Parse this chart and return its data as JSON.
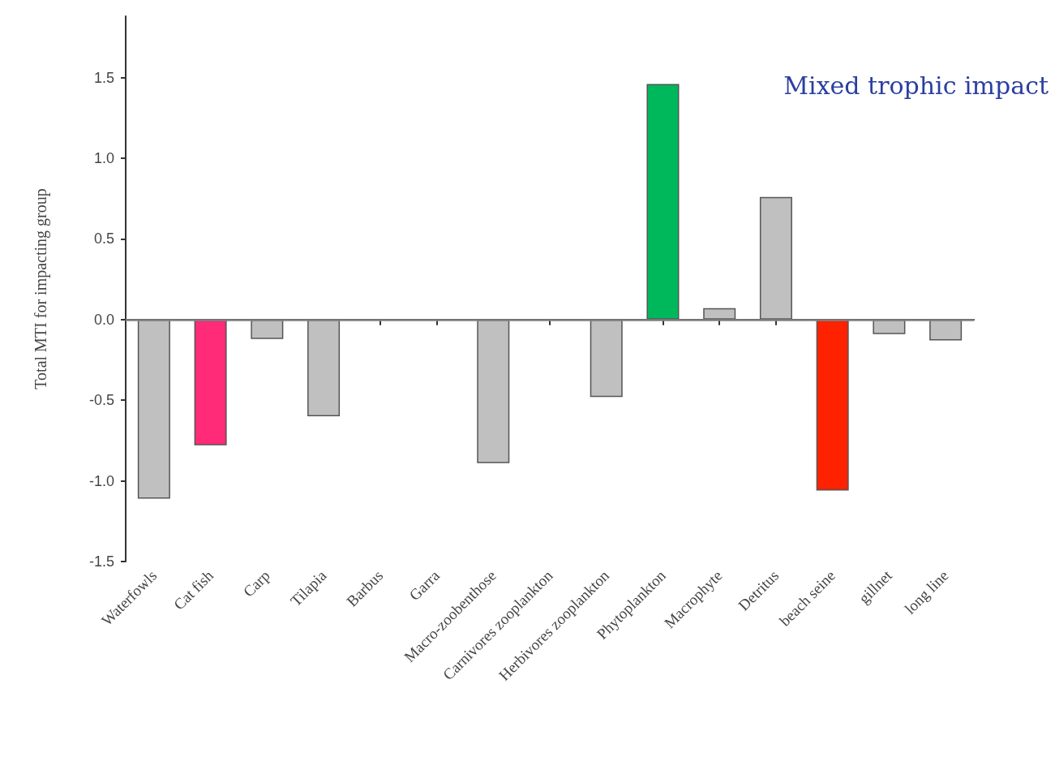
{
  "chart_data": {
    "type": "bar",
    "annotations": [
      "Mixed trophic impact"
    ],
    "ylabel": "Total MTI for impacting group",
    "categories": [
      "Waterfowls",
      "Cat fish",
      "Carp",
      "Tilapia",
      "Barbus",
      "Garra",
      "Macro-zoobenthose",
      "Carnivores zooplankton",
      "Herbivores zooplankton",
      "Phytoplankton",
      "Macrophyte",
      "Detritus",
      "beach seine",
      "gillnet",
      "long line"
    ],
    "values": [
      -1.11,
      -0.78,
      -0.12,
      -0.6,
      0,
      0,
      -0.89,
      0,
      -0.48,
      1.46,
      0.07,
      0.76,
      -1.06,
      -0.09,
      -0.13
    ],
    "colors": [
      "#c0c0c0",
      "#ff2a78",
      "#c0c0c0",
      "#c0c0c0",
      "#c0c0c0",
      "#c0c0c0",
      "#c0c0c0",
      "#c0c0c0",
      "#c0c0c0",
      "#00b85c",
      "#c0c0c0",
      "#c0c0c0",
      "#ff2200",
      "#c0c0c0",
      "#c0c0c0"
    ],
    "ylim": [
      -1.5,
      1.88
    ],
    "yticks": [
      {
        "value": -1.5,
        "label": "-1.5"
      },
      {
        "value": -1,
        "label": "-1.0"
      },
      {
        "value": -0.5,
        "label": "-0.5"
      },
      {
        "value": 0,
        "label": "0.0"
      },
      {
        "value": 0.5,
        "label": "0.5"
      },
      {
        "value": 1,
        "label": "1.0"
      },
      {
        "value": 1.5,
        "label": "1.5"
      }
    ],
    "ref_lines": [
      {
        "axis": "y",
        "value": 0,
        "color": "#808080"
      }
    ],
    "grid": false
  }
}
